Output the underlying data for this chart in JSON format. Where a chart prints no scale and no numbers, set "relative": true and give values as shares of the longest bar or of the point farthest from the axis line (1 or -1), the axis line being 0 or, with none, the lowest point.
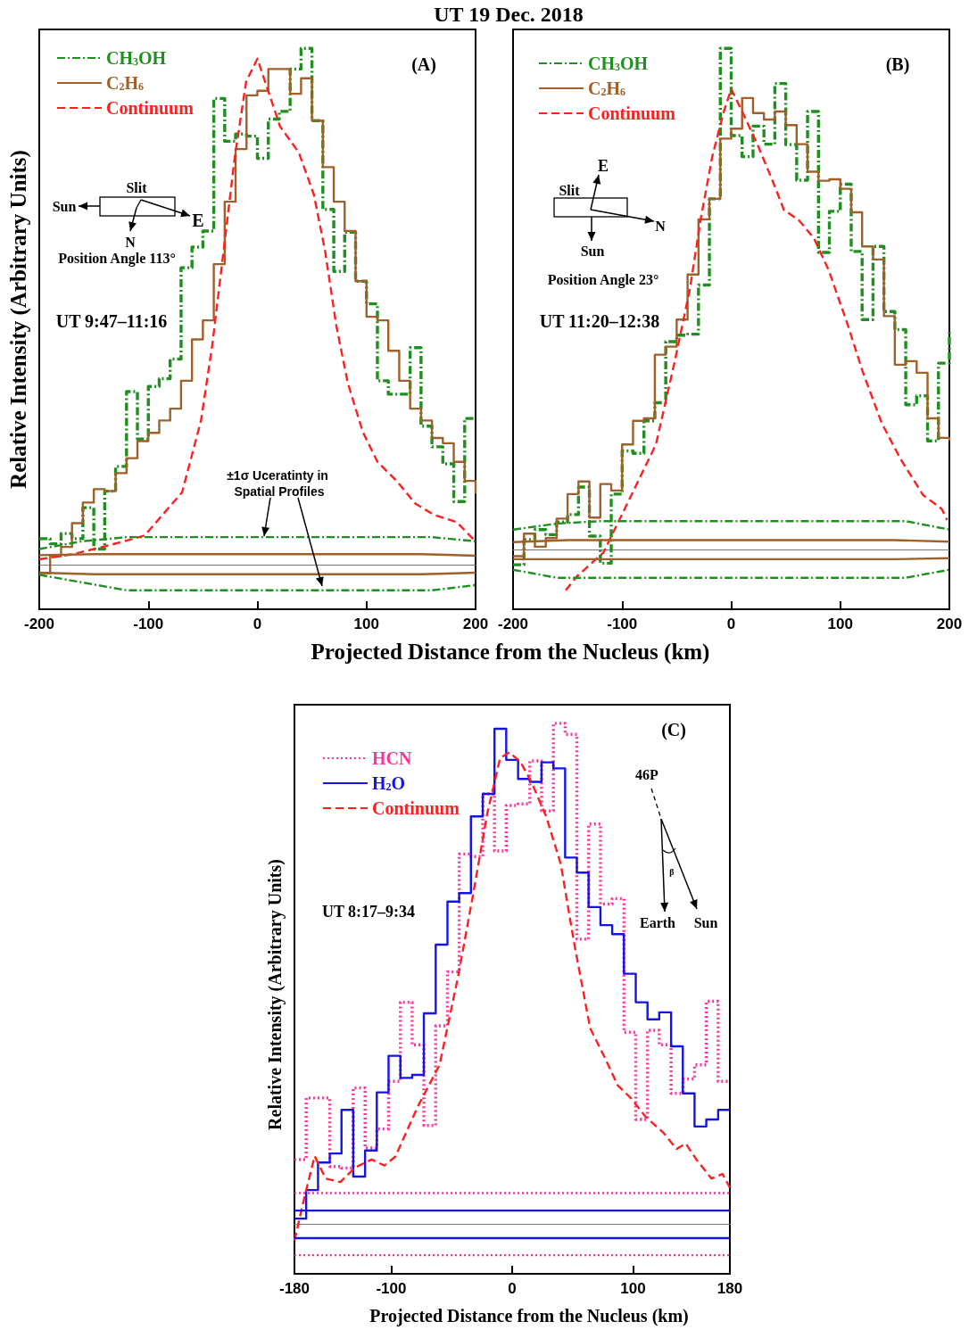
{
  "chart_data": [
    {
      "type": "step",
      "relative": true,
      "title": "UT 19 Dec. 2018",
      "xlabel": "Projected Distance from the Nucleus (km)",
      "ylabel": "Relative Intensity (Arbitrary Units)",
      "xlim": [
        -200,
        200
      ],
      "xticks": [
        -200,
        -100,
        0,
        100,
        200
      ],
      "tick_labels": "x",
      "legend": "top left",
      "annotations": [
        "(A)",
        "Slit",
        "Sun",
        "E",
        "N",
        "Position Angle 113°",
        "UT 9:47–11:16",
        "±1σ Uceratinty in Spatial Profiles"
      ],
      "series": [
        {
          "name": "CH$_{3}$OH",
          "color": "#1f8f1f",
          "line_style": "dashdot",
          "x": [
            -200,
            -190,
            -180,
            -170,
            -160,
            -150,
            -140,
            -130,
            -120,
            -110,
            -100,
            -90,
            -80,
            -70,
            -60,
            -50,
            -40,
            -30,
            -20,
            -10,
            0,
            10,
            20,
            30,
            40,
            50,
            60,
            70,
            80,
            90,
            100,
            110,
            120,
            130,
            140,
            150,
            160,
            170,
            180,
            190,
            200
          ],
          "values": [
            0.05,
            0.04,
            0.06,
            0.05,
            0.11,
            0.03,
            0.142,
            0.19,
            0.335,
            0.243,
            0.345,
            0.36,
            0.398,
            0.575,
            0.615,
            0.646,
            0.903,
            0.82,
            0.834,
            0.83,
            0.787,
            0.863,
            0.878,
            0.96,
            1.0,
            0.86,
            0.688,
            0.568,
            0.644,
            0.549,
            0.505,
            0.356,
            0.33,
            0.33,
            0.42,
            0.268,
            0.228,
            0.195,
            0.122,
            0.283,
            0.283
          ]
        },
        {
          "name": "C$_{2}$H$_{6}$",
          "color": "#a0602a",
          "line_style": "solid",
          "x": [
            -200,
            -190,
            -180,
            -170,
            -160,
            -150,
            -140,
            -130,
            -120,
            -110,
            -100,
            -90,
            -80,
            -70,
            -60,
            -50,
            -40,
            -30,
            -20,
            -10,
            0,
            10,
            20,
            30,
            40,
            50,
            60,
            70,
            80,
            90,
            100,
            110,
            120,
            130,
            140,
            150,
            160,
            170,
            180,
            190,
            200
          ],
          "values": [
            -0.017,
            0.016,
            0.034,
            0.08,
            0.12,
            0.146,
            0.142,
            0.177,
            0.206,
            0.239,
            0.255,
            0.279,
            0.302,
            0.356,
            0.436,
            0.473,
            0.582,
            0.703,
            0.805,
            0.909,
            0.918,
            0.96,
            0.96,
            0.912,
            0.942,
            0.86,
            0.77,
            0.703,
            0.646,
            0.549,
            0.48,
            0.473,
            0.414,
            0.356,
            0.302,
            0.279,
            0.245,
            0.235,
            0.199,
            0.162,
            0.137
          ]
        },
        {
          "name": "Continuum",
          "type": "line",
          "color": "#ff1f1f",
          "line_style": "dashed",
          "x": [
            -200,
            -169,
            -134.5,
            -103.4,
            -69,
            -51.7,
            -41.4,
            -31,
            -20.7,
            -10.3,
            0,
            10.3,
            20.7,
            38,
            51.7,
            62,
            72.4,
            82.8,
            96.6,
            110,
            127.6,
            144.8,
            162,
            182.8,
            198
          ],
          "values": [
            0.01,
            0.02,
            0.038,
            0.056,
            0.14,
            0.279,
            0.425,
            0.608,
            0.79,
            0.936,
            0.98,
            0.915,
            0.849,
            0.798,
            0.717,
            0.608,
            0.462,
            0.352,
            0.257,
            0.199,
            0.162,
            0.118,
            0.096,
            0.082,
            0.049
          ]
        },
        {
          "type": "line",
          "color": "#1f8f1f",
          "line_style": "dashdot",
          "x": [
            -200,
            -160,
            -120,
            160,
            200
          ],
          "values": [
            0.03,
            0.045,
            0.053,
            0.053,
            0.045
          ]
        },
        {
          "type": "line",
          "color": "#1f8f1f",
          "line_style": "dashdot",
          "x": [
            -200,
            -160,
            -120,
            160,
            200
          ],
          "values": [
            -0.02,
            -0.035,
            -0.05,
            -0.05,
            -0.04
          ]
        },
        {
          "type": "line",
          "color": "#a0602a",
          "line_style": "solid",
          "x": [
            -200,
            -150,
            150,
            200
          ],
          "values": [
            0.018,
            0.02,
            0.02,
            0.017
          ]
        },
        {
          "type": "line",
          "color": "#a0602a",
          "line_style": "solid",
          "x": [
            -200,
            -150,
            150,
            200
          ],
          "values": [
            -0.016,
            -0.019,
            -0.019,
            -0.016
          ]
        }
      ]
    },
    {
      "type": "step",
      "relative": true,
      "xlim": [
        -200,
        200
      ],
      "xticks": [
        -200,
        -100,
        0,
        100,
        200
      ],
      "tick_labels": "x",
      "legend": "top left",
      "annotations": [
        "(B)",
        "E",
        "Slit",
        "N",
        "Sun",
        "Position Angle 23°",
        "UT 11:20–12:38"
      ],
      "series": [
        {
          "name": "CH$_{3}$OH",
          "color": "#1f8f1f",
          "line_style": "dashdot",
          "x": [
            -200,
            -190,
            -180,
            -170,
            -160,
            -150,
            -140,
            -130,
            -120,
            -110,
            -100,
            -90,
            -80,
            -70,
            -60,
            -50,
            -40,
            -30,
            -20,
            -10,
            0,
            10,
            20,
            30,
            40,
            50,
            60,
            70,
            80,
            90,
            100,
            110,
            120,
            130,
            140,
            150,
            160,
            170,
            180,
            190,
            200
          ],
          "values": [
            -0.03,
            0.02,
            0.04,
            0.03,
            0.055,
            0.07,
            0.125,
            0.027,
            -0.027,
            0.111,
            0.197,
            0.192,
            0.257,
            0.293,
            0.415,
            0.428,
            0.43,
            0.528,
            0.7,
            1.0,
            0.826,
            0.784,
            0.845,
            0.809,
            0.93,
            0.808,
            0.737,
            0.874,
            0.593,
            0.675,
            0.729,
            0.595,
            0.459,
            0.605,
            0.475,
            0.439,
            0.289,
            0.307,
            0.217,
            0.372,
            0.435
          ]
        },
        {
          "name": "C$_{2}$H$_{6}$",
          "color": "#a0602a",
          "line_style": "solid",
          "x": [
            -200,
            -190,
            -180,
            -170,
            -160,
            -150,
            -140,
            -130,
            -120,
            -110,
            -100,
            -90,
            -80,
            -70,
            -60,
            -50,
            -40,
            -30,
            -20,
            -10,
            0,
            10,
            20,
            30,
            40,
            50,
            60,
            70,
            80,
            90,
            100,
            110,
            120,
            130,
            140,
            150,
            160,
            170,
            180,
            190,
            200
          ],
          "values": [
            -0.013,
            0.032,
            0.006,
            0.023,
            0.062,
            0.111,
            0.136,
            0.064,
            0.131,
            0.118,
            0.21,
            0.257,
            0.262,
            0.389,
            0.405,
            0.459,
            0.549,
            0.659,
            0.7,
            0.82,
            0.84,
            0.901,
            0.871,
            0.858,
            0.874,
            0.847,
            0.809,
            0.754,
            0.736,
            0.739,
            0.72,
            0.673,
            0.605,
            0.579,
            0.466,
            0.369,
            0.376,
            0.353,
            0.262,
            0.223,
            0.217
          ]
        },
        {
          "name": "Continuum",
          "type": "line",
          "color": "#ff1f1f",
          "line_style": "dashed",
          "x": [
            -151.7,
            -141.4,
            -117.2,
            -89.7,
            -69,
            -51.7,
            -37.9,
            -27.6,
            -17.2,
            -6.9,
            0,
            10.3,
            24.1,
            37.9,
            48.3,
            62.1,
            75.9,
            89.7,
            106.9,
            120.7,
            137.9,
            155.2,
            175.9,
            193.1,
            198
          ],
          "values": [
            -0.081,
            -0.053,
            -0.006,
            0.117,
            0.21,
            0.376,
            0.52,
            0.664,
            0.786,
            0.873,
            0.919,
            0.873,
            0.808,
            0.736,
            0.678,
            0.657,
            0.621,
            0.556,
            0.448,
            0.354,
            0.253,
            0.181,
            0.109,
            0.081,
            0.059
          ]
        },
        {
          "type": "line",
          "color": "#1f8f1f",
          "line_style": "dashdot",
          "x": [
            -200,
            -160,
            -120,
            160,
            200
          ],
          "values": [
            0.04,
            0.052,
            0.057,
            0.057,
            0.04
          ]
        },
        {
          "type": "line",
          "color": "#1f8f1f",
          "line_style": "dashdot",
          "x": [
            -200,
            -160,
            -120,
            160,
            200
          ],
          "values": [
            -0.04,
            -0.056,
            -0.056,
            -0.056,
            -0.04
          ]
        },
        {
          "type": "line",
          "color": "#a0602a",
          "line_style": "solid",
          "x": [
            -200,
            -150,
            150,
            200
          ],
          "values": [
            0.015,
            0.019,
            0.019,
            0.016
          ]
        },
        {
          "type": "line",
          "color": "#a0602a",
          "line_style": "solid",
          "x": [
            -200,
            -150,
            150,
            200
          ],
          "values": [
            -0.019,
            -0.019,
            -0.019,
            -0.017
          ]
        }
      ]
    },
    {
      "type": "step",
      "relative": true,
      "xlabel": "Projected Distance from the Nucleus (km)",
      "ylabel": "Relative Intensity (Arbitrary Units)",
      "xlim": [
        -180,
        180
      ],
      "xticks": [
        -180,
        -100,
        0,
        100,
        180
      ],
      "tick_labels": "x",
      "legend": "top left",
      "annotations": [
        "(C)",
        "46P",
        "β",
        "Earth",
        "Sun",
        "UT 8:17–9:34"
      ],
      "series": [
        {
          "name": "HCN",
          "color": "#ff3399",
          "line_style": "dotted",
          "x": [
            -180,
            -170.3,
            -160.5,
            -150.8,
            -141.1,
            -131.4,
            -121.6,
            -111.9,
            -102.2,
            -92.4,
            -82.7,
            -73,
            -63.2,
            -53.5,
            -43.8,
            -34.1,
            -24.3,
            -14.6,
            -4.9,
            4.9,
            14.6,
            24.3,
            34.1,
            43.8,
            53.5,
            63.2,
            73,
            82.7,
            92.4,
            102.2,
            111.9,
            121.6,
            131.4,
            141.1,
            150.8,
            160.5,
            170.3,
            180
          ],
          "values": [
            0.129,
            0.252,
            0.252,
            0.115,
            0.112,
            0.272,
            0.152,
            0.19,
            0.285,
            0.443,
            0.358,
            0.197,
            0.396,
            0.504,
            0.739,
            0.734,
            0.859,
            0.745,
            0.836,
            0.839,
            0.925,
            0.825,
            1.0,
            0.978,
            0.569,
            0.799,
            0.639,
            0.65,
            0.383,
            0.209,
            0.387,
            0.358,
            0.261,
            0.29,
            0.318,
            0.445,
            0.285,
            0.285
          ]
        },
        {
          "name": "H$_{2}$O",
          "color": "#1414e6",
          "line_style": "solid",
          "x": [
            -180,
            -170.3,
            -160.5,
            -150.8,
            -141.1,
            -131.4,
            -121.6,
            -111.9,
            -102.2,
            -92.4,
            -82.7,
            -73,
            -63.2,
            -53.5,
            -43.8,
            -34.1,
            -24.3,
            -14.6,
            -4.9,
            4.9,
            14.6,
            24.3,
            34.1,
            43.8,
            53.5,
            63.2,
            73,
            82.7,
            92.4,
            102.2,
            111.9,
            121.6,
            131.4,
            141.1,
            150.8,
            160.5,
            170.3,
            180
          ],
          "values": [
            0.011,
            0.068,
            0.123,
            0.141,
            0.228,
            0.095,
            0.147,
            0.263,
            0.336,
            0.292,
            0.298,
            0.421,
            0.558,
            0.644,
            0.661,
            0.814,
            0.859,
            0.989,
            0.927,
            0.889,
            0.883,
            0.922,
            0.91,
            0.732,
            0.702,
            0.633,
            0.597,
            0.579,
            0.5,
            0.443,
            0.409,
            0.423,
            0.355,
            0.261,
            0.195,
            0.209,
            0.228,
            0.228
          ]
        },
        {
          "name": "Continuum",
          "type": "line",
          "color": "#ff1f1f",
          "line_style": "dashed",
          "x": [
            -180,
            -172.4,
            -163.3,
            -154.2,
            -142,
            -129.9,
            -116.2,
            -105.6,
            -96.5,
            -78.2,
            -60,
            -44.8,
            -32.7,
            -20.5,
            -9.9,
            -2.3,
            6.8,
            15.9,
            28.1,
            40.2,
            50.9,
            64.5,
            76.7,
            87.3,
            98,
            110.1,
            125.3,
            135.9,
            143.5,
            152.6,
            164.8,
            173.9,
            180
          ],
          "values": [
            -0.033,
            0.047,
            0.136,
            0.091,
            0.084,
            0.113,
            0.129,
            0.117,
            0.135,
            0.234,
            0.318,
            0.493,
            0.653,
            0.821,
            0.931,
            0.942,
            0.923,
            0.883,
            0.814,
            0.719,
            0.566,
            0.391,
            0.332,
            0.277,
            0.252,
            0.215,
            0.182,
            0.15,
            0.161,
            0.128,
            0.091,
            0.1,
            0.073
          ]
        },
        {
          "type": "line",
          "color": "#ff3399",
          "line_style": "dotted",
          "x": [
            -180,
            180
          ],
          "values": [
            0.062,
            0.062
          ]
        },
        {
          "type": "line",
          "color": "#ff3399",
          "line_style": "dotted",
          "x": [
            -180,
            180
          ],
          "values": [
            -0.062,
            -0.062
          ]
        },
        {
          "type": "line",
          "color": "#1414e6",
          "line_style": "solid",
          "x": [
            -180,
            180
          ],
          "values": [
            0.027,
            0.027
          ]
        },
        {
          "type": "line",
          "color": "#1414e6",
          "line_style": "solid",
          "x": [
            -180,
            180
          ],
          "values": [
            -0.028,
            -0.028
          ]
        }
      ]
    }
  ]
}
